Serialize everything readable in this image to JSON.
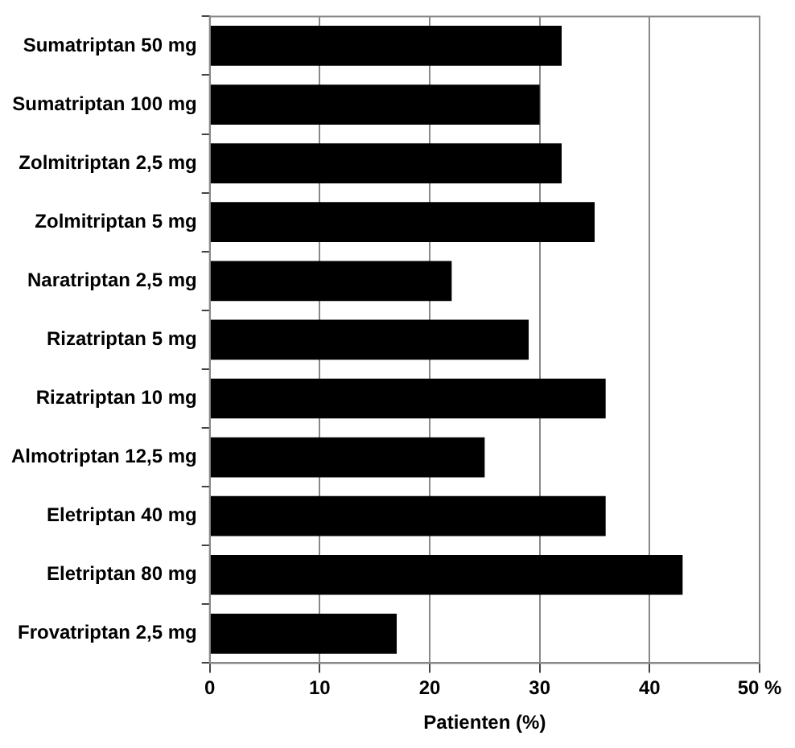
{
  "chart_data": {
    "type": "bar",
    "orientation": "horizontal",
    "xlabel": "Patienten (%)",
    "categories": [
      "Sumatriptan 50 mg",
      "Sumatriptan 100 mg",
      "Zolmitriptan 2,5 mg",
      "Zolmitriptan 5 mg",
      "Naratriptan 2,5 mg",
      "Rizatriptan 5 mg",
      "Rizatriptan 10 mg",
      "Almotriptan 12,5 mg",
      "Eletriptan 40 mg",
      "Eletriptan 80 mg",
      "Frovatriptan 2,5 mg"
    ],
    "values": [
      32,
      30,
      32,
      35,
      22,
      29,
      36,
      25,
      36,
      43,
      17
    ],
    "color": "#000000",
    "xlim": [
      0,
      50
    ],
    "xticks": [
      0,
      10,
      20,
      30,
      40,
      {
        "value": 50,
        "label": "50 %"
      }
    ],
    "grid": "x"
  }
}
